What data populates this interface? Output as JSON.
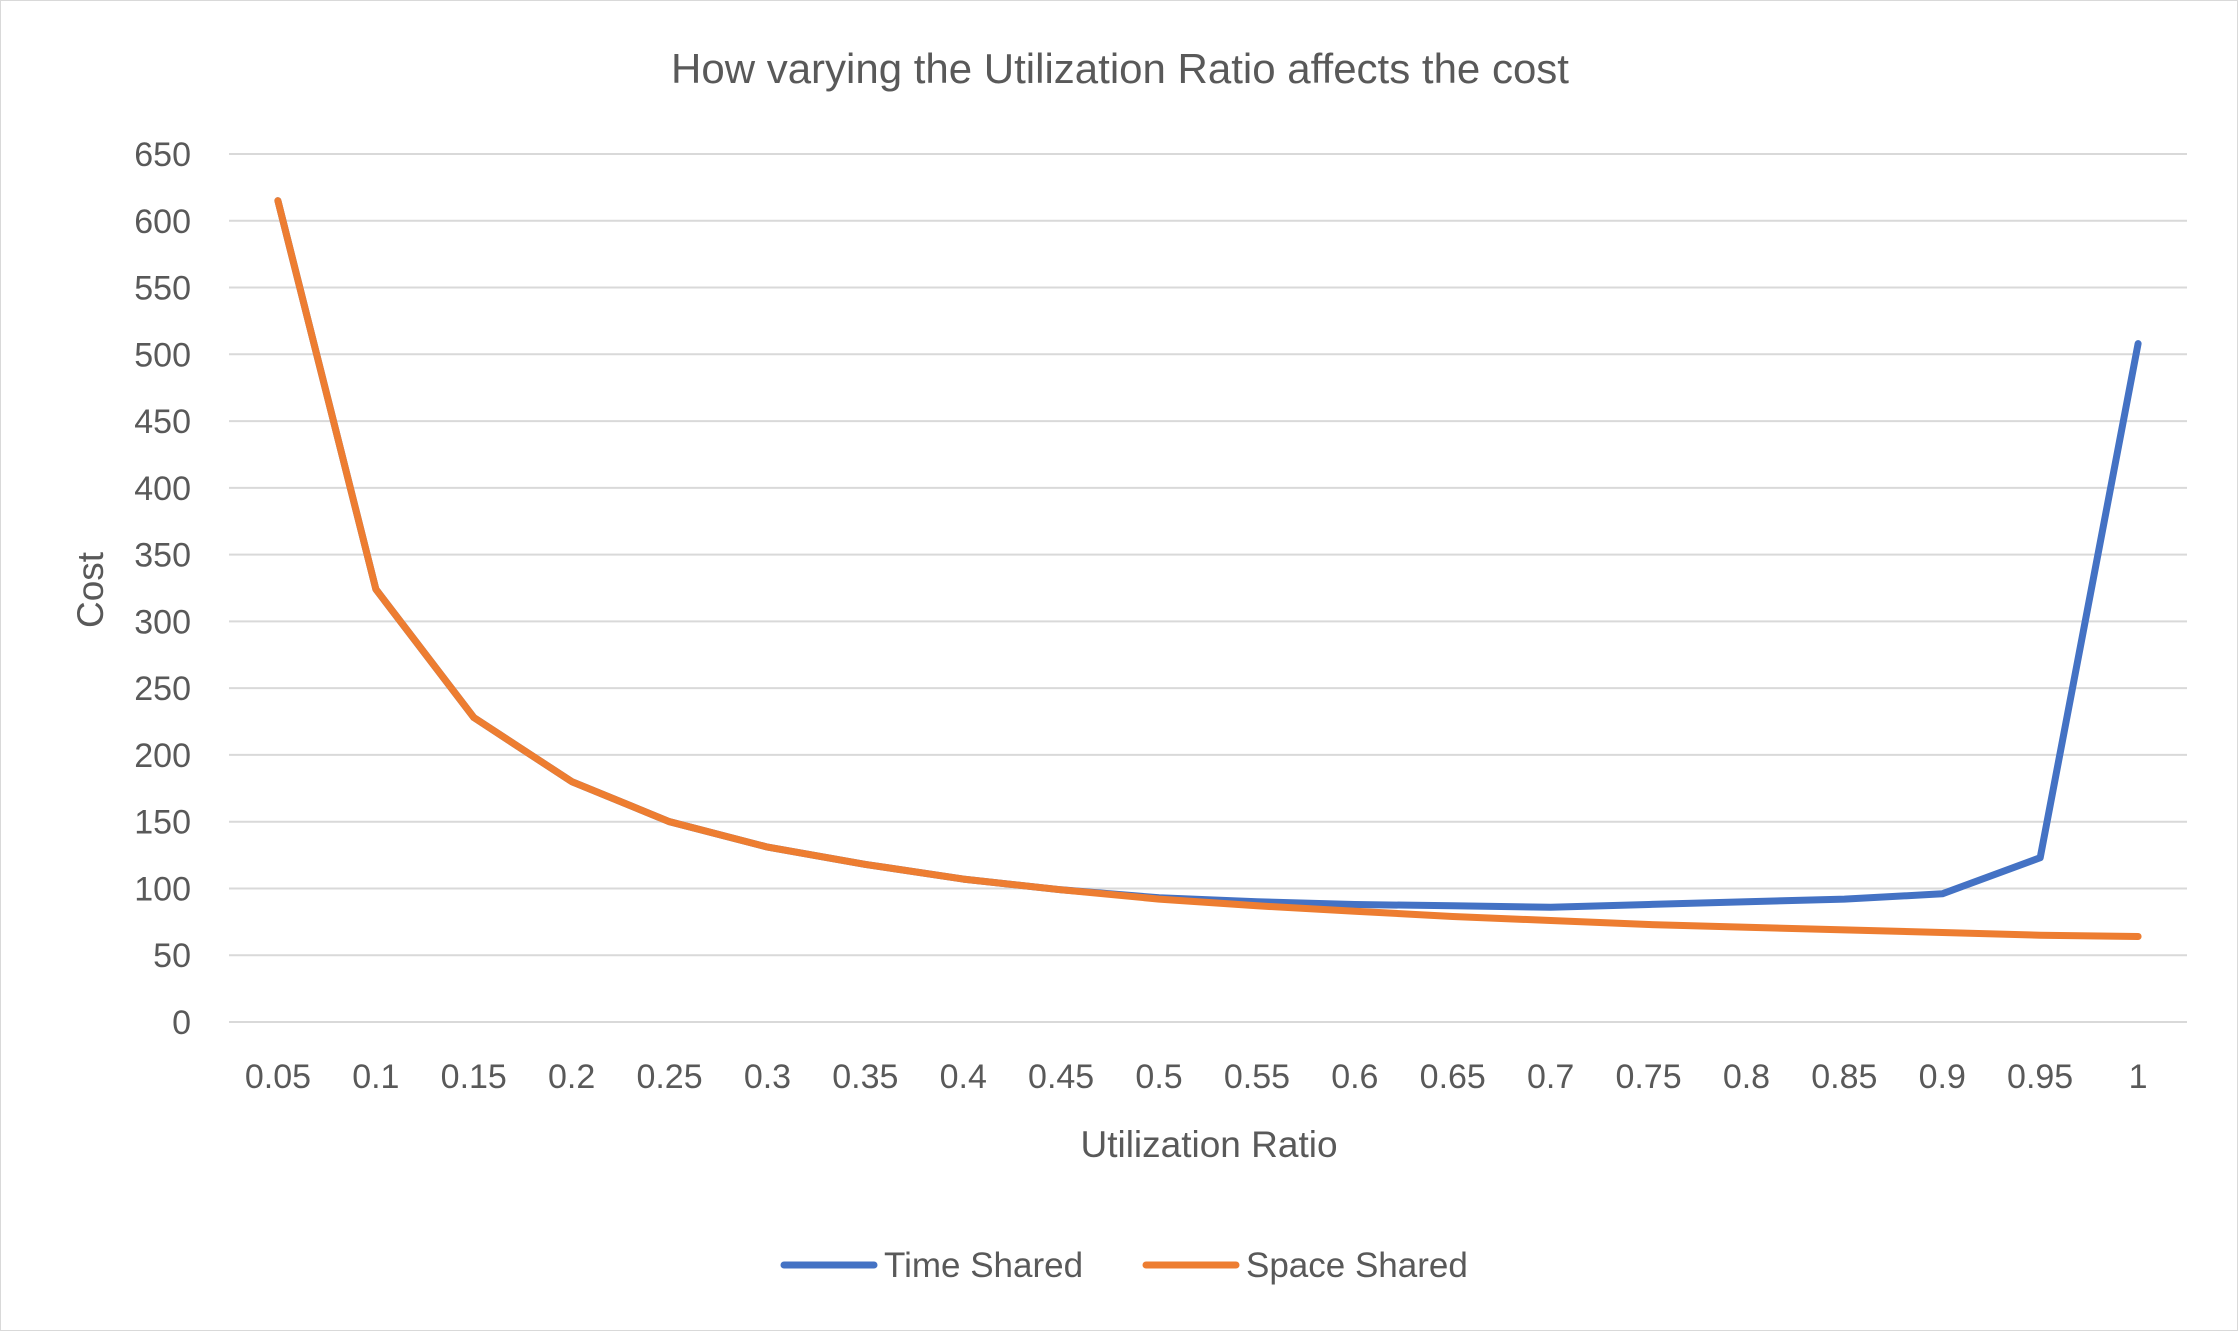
{
  "chart_data": {
    "type": "line",
    "title": "How varying the Utilization Ratio affects the cost",
    "xlabel": "Utilization Ratio",
    "ylabel": "Cost",
    "categories": [
      "0.05",
      "0.1",
      "0.15",
      "0.2",
      "0.25",
      "0.3",
      "0.35",
      "0.4",
      "0.45",
      "0.5",
      "0.55",
      "0.6",
      "0.65",
      "0.7",
      "0.75",
      "0.8",
      "0.85",
      "0.9",
      "0.95",
      "1"
    ],
    "ylim": [
      0,
      650
    ],
    "yticks": [
      "0",
      "50",
      "100",
      "150",
      "200",
      "250",
      "300",
      "350",
      "400",
      "450",
      "500",
      "550",
      "600",
      "650"
    ],
    "grid": true,
    "legend_position": "bottom",
    "series": [
      {
        "name": "Time Shared",
        "color": "#4472c4",
        "values": [
          615,
          324,
          228,
          180,
          150,
          131,
          118,
          107,
          99,
          93,
          90,
          88,
          87,
          86,
          88,
          90,
          92,
          96,
          123,
          508
        ]
      },
      {
        "name": "Space Shared",
        "color": "#ed7d31",
        "values": [
          615,
          324,
          228,
          180,
          150,
          131,
          118,
          107,
          99,
          92,
          87,
          83,
          79,
          76,
          73,
          71,
          69,
          67,
          65,
          64
        ]
      }
    ]
  }
}
